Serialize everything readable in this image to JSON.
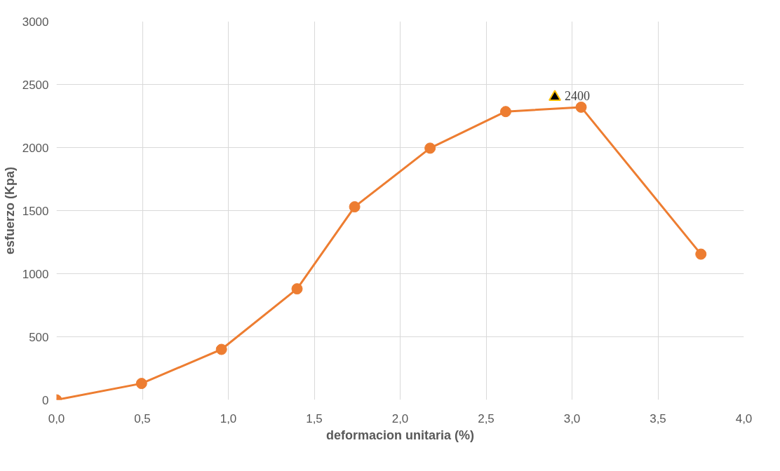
{
  "chart_data": {
    "type": "line",
    "xlabel": "deformacion unitaria (%)",
    "ylabel": "esfuerzo (Kpa)",
    "xlim": [
      0,
      4
    ],
    "ylim": [
      0,
      3000
    ],
    "xticks": [
      {
        "value": 0,
        "label": "0,0"
      },
      {
        "value": 0.5,
        "label": "0,5"
      },
      {
        "value": 1,
        "label": "1,0"
      },
      {
        "value": 1.5,
        "label": "1,5"
      },
      {
        "value": 2,
        "label": "2,0"
      },
      {
        "value": 2.5,
        "label": "2,5"
      },
      {
        "value": 3,
        "label": "3,0"
      },
      {
        "value": 3.5,
        "label": "3,5"
      },
      {
        "value": 4,
        "label": "4,0"
      }
    ],
    "yticks": [
      0,
      500,
      1000,
      1500,
      2000,
      2500,
      3000
    ],
    "grid": true,
    "series": [
      {
        "type": "line",
        "color": "#ed7d31",
        "marker": "circle",
        "x": [
          0,
          0.495,
          0.96,
          1.4,
          1.735,
          2.174,
          2.614,
          3.053,
          3.75
        ],
        "values": [
          0,
          130,
          400,
          880,
          1530,
          1995,
          2285,
          2320,
          1155
        ]
      },
      {
        "type": "scatter",
        "color": "#000000",
        "marker": "triangle",
        "x": [
          2.9
        ],
        "values": [
          2400
        ],
        "value_labels": [
          "2400"
        ]
      }
    ]
  }
}
